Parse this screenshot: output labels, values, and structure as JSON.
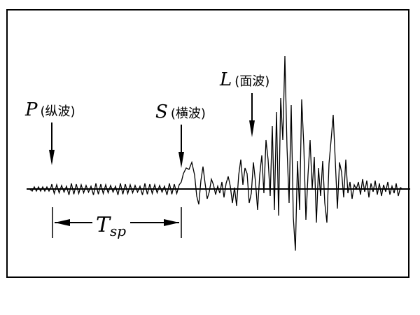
{
  "diagram": {
    "waves": {
      "p": {
        "letter": "P",
        "paren_open": "(",
        "name": "纵波",
        "paren_close": ")"
      },
      "s": {
        "letter": "S",
        "paren_open": "(",
        "name": "横波",
        "paren_close": ")"
      },
      "l": {
        "letter": "L",
        "paren_open": "(",
        "name": "面波",
        "paren_close": ")"
      }
    },
    "interval": {
      "symbol": "T",
      "subscript": "sp"
    },
    "colors": {
      "line": "#000000",
      "background": "#ffffff"
    }
  }
}
